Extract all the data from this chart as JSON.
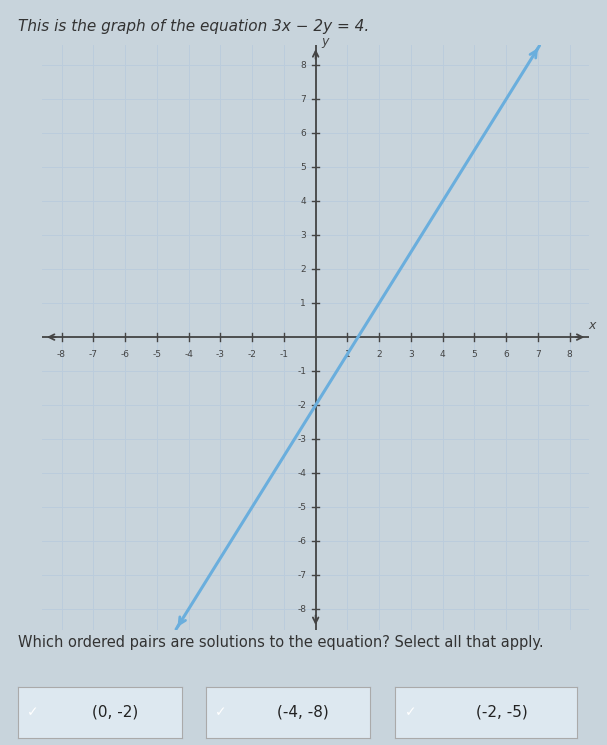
{
  "title": "This is the graph of the equation 3x − 2y = 4.",
  "title_fontsize": 11,
  "title_color": "#333333",
  "xlim": [
    -8.6,
    8.6
  ],
  "ylim": [
    -8.6,
    8.6
  ],
  "xticks": [
    -8,
    -7,
    -6,
    -5,
    -4,
    -3,
    -2,
    -1,
    1,
    2,
    3,
    4,
    5,
    6,
    7,
    8
  ],
  "yticks": [
    -8,
    -7,
    -6,
    -5,
    -4,
    -3,
    -2,
    -1,
    1,
    2,
    3,
    4,
    5,
    6,
    7,
    8
  ],
  "line_color": "#6aaedd",
  "grid_color": "#bbccdd",
  "grid_linewidth": 0.7,
  "axis_color": "#444444",
  "plot_bg": "#dde8f0",
  "outer_bg": "#c8d4dc",
  "checkbox_color": "#5aaecc",
  "checkbox_label_color": "#222222",
  "answers": [
    "(0, -2)",
    "(-4, -8)",
    "(-2, -5)"
  ],
  "answer_fontsize": 11,
  "question_text": "Which ordered pairs are solutions to the equation? Select all that apply.",
  "question_fontsize": 10.5
}
